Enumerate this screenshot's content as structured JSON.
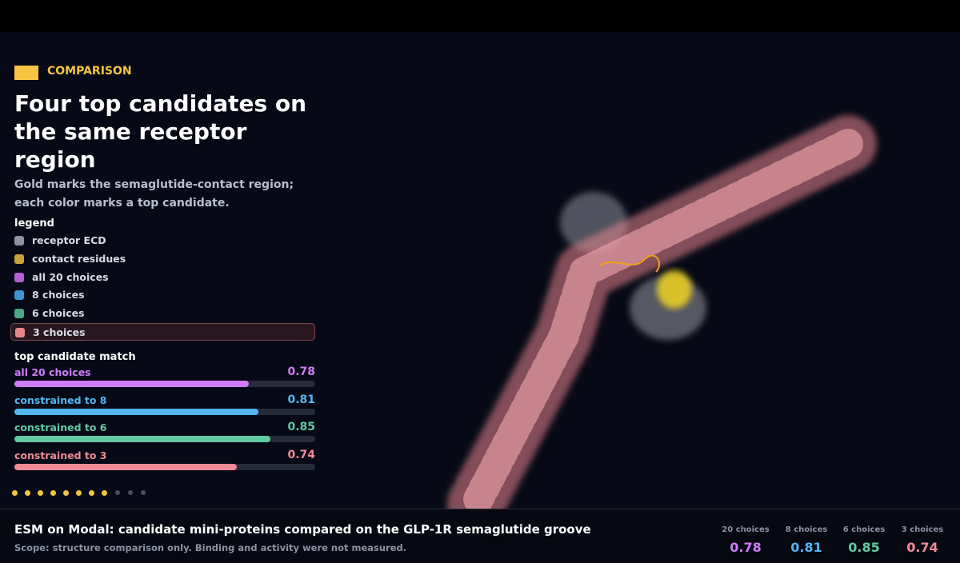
{
  "header": {
    "tag": "COMPARISON",
    "title": "Four top candidates on the same receptor region",
    "subtitle": "Gold marks the semaglutide-contact region; each color marks a top candidate."
  },
  "legend": {
    "title": "legend",
    "items": [
      {
        "label": "receptor ECD",
        "color": "#8d93a0"
      },
      {
        "label": "contact residues",
        "color": "#c9a33a"
      },
      {
        "label": "all 20 choices",
        "color": "#b460d6"
      },
      {
        "label": "8 choices",
        "color": "#3d96d4"
      },
      {
        "label": "6 choices",
        "color": "#4ca888"
      },
      {
        "label": "3 choices",
        "color": "#e8848c",
        "highlighted": true
      }
    ]
  },
  "match": {
    "title": "top candidate match",
    "xlim": [
      0,
      1
    ],
    "rows": [
      {
        "label": "all 20 choices",
        "value": 0.78,
        "color": "#cf7cf7"
      },
      {
        "label": "constrained to 8",
        "value": 0.81,
        "color": "#52b6f2"
      },
      {
        "label": "constrained to 6",
        "value": 0.85,
        "color": "#62c9a2"
      },
      {
        "label": "constrained to 3",
        "value": 0.74,
        "color": "#f08a95"
      }
    ]
  },
  "footer": {
    "title": "ESM on Modal: candidate mini-proteins compared on the GLP-1R semaglutide groove",
    "note": "Scope: structure comparison only. Binding and activity were not measured.",
    "stats": [
      {
        "label": "20 choices",
        "value": 0.78,
        "color": "#cf7cf7"
      },
      {
        "label": "8 choices",
        "value": 0.81,
        "color": "#52b6f2"
      },
      {
        "label": "6 choices",
        "value": 0.85,
        "color": "#62c9a2"
      },
      {
        "label": "3 choices",
        "value": 0.74,
        "color": "#f08a95"
      }
    ]
  }
}
